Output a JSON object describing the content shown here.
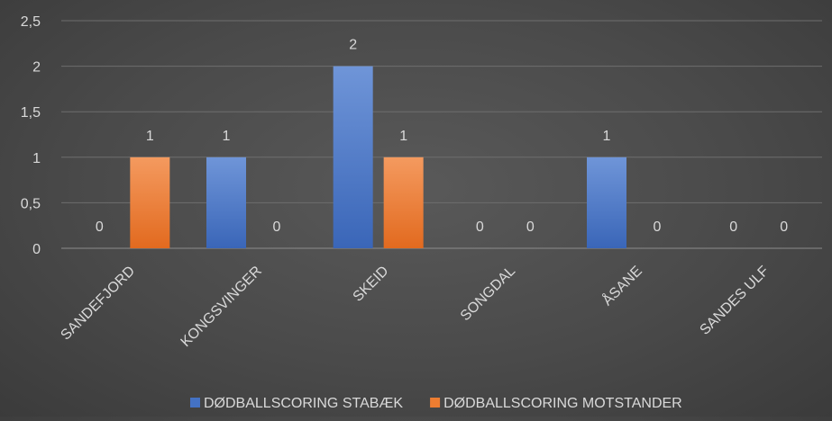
{
  "chart_data": {
    "type": "bar",
    "title": "",
    "xlabel": "",
    "ylabel": "",
    "categories": [
      "SANDEFJORD",
      "KONGSVINGER",
      "SKEID",
      "SONGDAL",
      "ÅSANE",
      "SANDES ULF"
    ],
    "series": [
      {
        "name": "DØDBALLSCORING STABÆK",
        "values": [
          0,
          1,
          2,
          0,
          1,
          0
        ],
        "color": "#4472c4"
      },
      {
        "name": "DØDBALLSCORING MOTSTANDER",
        "values": [
          1,
          0,
          1,
          0,
          0,
          0
        ],
        "color": "#ed7d31"
      }
    ],
    "ylim": [
      0,
      2.5
    ],
    "yticks": [
      "0",
      "0,5",
      "1",
      "1,5",
      "2",
      "2,5"
    ],
    "grid": true,
    "legend_position": "bottom",
    "data_labels": true
  }
}
